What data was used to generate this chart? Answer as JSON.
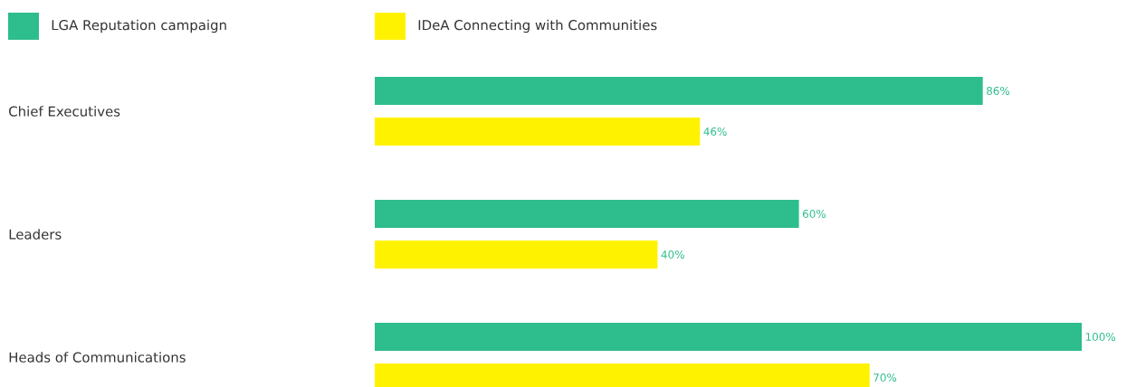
{
  "chart_data": {
    "type": "bar",
    "orientation": "horizontal",
    "legend": "top",
    "categories": [
      "Chief Executives",
      "Leaders",
      "Heads of Communications"
    ],
    "series": [
      {
        "name": "LGA Reputation campaign",
        "color": "#2ebd8c",
        "values": [
          86,
          60,
          100
        ],
        "value_labels": [
          "86%",
          "60%",
          "100%"
        ]
      },
      {
        "name": "IDeA Connecting with Communities",
        "color": "#fff200",
        "values": [
          46,
          40,
          70
        ],
        "value_labels": [
          "46%",
          "40%",
          "70%"
        ]
      }
    ]
  }
}
